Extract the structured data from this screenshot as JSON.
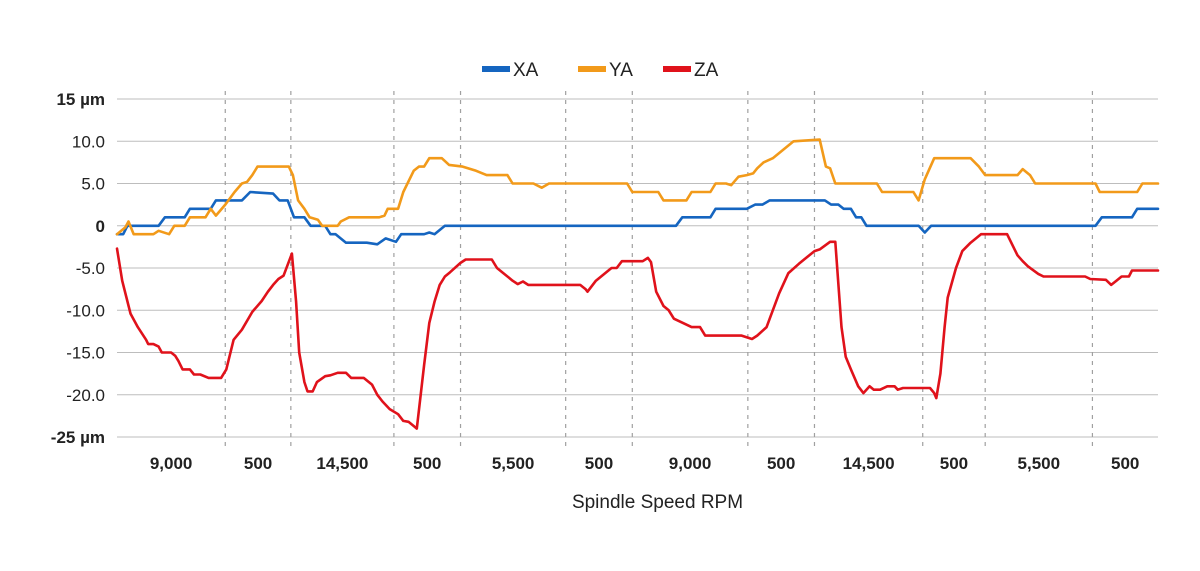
{
  "chart_data": {
    "type": "line",
    "xlabel": "Spindle Speed RPM",
    "ylabel": "",
    "ylim": [
      -25,
      15
    ],
    "x_range": [
      0,
      100
    ],
    "y_ticks": [
      {
        "value": 15,
        "label": "15 µm",
        "bold": true
      },
      {
        "value": 10,
        "label": "10.0",
        "bold": false
      },
      {
        "value": 5,
        "label": "5.0",
        "bold": false
      },
      {
        "value": 0,
        "label": "0",
        "bold": true
      },
      {
        "value": -5,
        "label": "-5.0",
        "bold": false
      },
      {
        "value": -10,
        "label": "-10.0",
        "bold": false
      },
      {
        "value": -15,
        "label": "-15.0",
        "bold": false
      },
      {
        "value": -20,
        "label": "-20.0",
        "bold": false
      },
      {
        "value": -25,
        "label": "-25 µm",
        "bold": true
      }
    ],
    "segment_boundaries": [
      0,
      10.4,
      16.7,
      26.6,
      33.0,
      43.1,
      49.5,
      60.6,
      67.0,
      77.4,
      83.4,
      93.7,
      100
    ],
    "x_tick_labels": [
      "9,000",
      "500",
      "14,500",
      "500",
      "5,500",
      "500",
      "9,000",
      "500",
      "14,500",
      "500",
      "5,500",
      "500"
    ],
    "legend_position": "top-center",
    "grid": true,
    "series": [
      {
        "name": "XA",
        "color": "#1565c0",
        "points": [
          [
            0,
            -1
          ],
          [
            0.6,
            -1
          ],
          [
            1,
            0
          ],
          [
            4,
            0
          ],
          [
            4.6,
            1
          ],
          [
            6.5,
            1
          ],
          [
            7,
            2
          ],
          [
            9,
            2
          ],
          [
            9.5,
            3
          ],
          [
            12,
            3
          ],
          [
            12.8,
            4
          ],
          [
            15,
            3.8
          ],
          [
            15.6,
            3
          ],
          [
            16.4,
            3
          ],
          [
            17,
            1
          ],
          [
            18,
            1
          ],
          [
            18.6,
            0
          ],
          [
            20,
            0
          ],
          [
            20.5,
            -1
          ],
          [
            21,
            -1
          ],
          [
            22,
            -2
          ],
          [
            24,
            -2
          ],
          [
            25,
            -2.2
          ],
          [
            25.8,
            -1.5
          ],
          [
            26.8,
            -1.9
          ],
          [
            27.3,
            -1
          ],
          [
            29.5,
            -1
          ],
          [
            30,
            -0.8
          ],
          [
            30.5,
            -1
          ],
          [
            31.5,
            0
          ],
          [
            53.7,
            0
          ],
          [
            54.3,
            1
          ],
          [
            57,
            1
          ],
          [
            57.5,
            2
          ],
          [
            60.5,
            2
          ],
          [
            61.3,
            2.5
          ],
          [
            62,
            2.5
          ],
          [
            62.7,
            3
          ],
          [
            68,
            3
          ],
          [
            68.6,
            2.5
          ],
          [
            69.3,
            2.5
          ],
          [
            69.8,
            2
          ],
          [
            70.5,
            2
          ],
          [
            71,
            1
          ],
          [
            71.5,
            1
          ],
          [
            72,
            0
          ],
          [
            77,
            0
          ],
          [
            77.6,
            -0.8
          ],
          [
            78.2,
            0
          ],
          [
            94,
            0
          ],
          [
            94.6,
            1
          ],
          [
            97.5,
            1
          ],
          [
            98,
            2
          ],
          [
            100,
            2
          ]
        ]
      },
      {
        "name": "YA",
        "color": "#f29a1a",
        "points": [
          [
            0,
            -1
          ],
          [
            0.8,
            -0.2
          ],
          [
            1.1,
            0.5
          ],
          [
            1.6,
            -1
          ],
          [
            3.5,
            -1
          ],
          [
            4,
            -0.6
          ],
          [
            5,
            -1
          ],
          [
            5.5,
            0
          ],
          [
            6.5,
            0
          ],
          [
            7,
            1
          ],
          [
            8.5,
            1
          ],
          [
            9,
            2
          ],
          [
            9.5,
            1.2
          ],
          [
            10.4,
            2.5
          ],
          [
            11.3,
            4
          ],
          [
            12,
            5
          ],
          [
            12.5,
            5.2
          ],
          [
            13,
            6
          ],
          [
            13.5,
            7
          ],
          [
            16.5,
            7
          ],
          [
            16.9,
            6
          ],
          [
            17.4,
            3
          ],
          [
            18,
            2
          ],
          [
            18.5,
            1
          ],
          [
            19.3,
            0.7
          ],
          [
            19.7,
            0
          ],
          [
            21.2,
            0
          ],
          [
            21.5,
            0.5
          ],
          [
            22.3,
            1
          ],
          [
            25.2,
            1
          ],
          [
            25.7,
            1.2
          ],
          [
            26,
            2
          ],
          [
            27,
            2
          ],
          [
            27.5,
            4
          ],
          [
            28.5,
            6.5
          ],
          [
            29,
            7
          ],
          [
            29.5,
            7
          ],
          [
            30,
            8
          ],
          [
            31.2,
            8
          ],
          [
            31.9,
            7.2
          ],
          [
            33.2,
            7
          ],
          [
            34.5,
            6.5
          ],
          [
            35.5,
            6
          ],
          [
            37.5,
            6
          ],
          [
            38,
            5
          ],
          [
            40,
            5
          ],
          [
            40.8,
            4.5
          ],
          [
            41.5,
            5
          ],
          [
            49,
            5
          ],
          [
            49.5,
            4
          ],
          [
            52,
            4
          ],
          [
            52.5,
            3
          ],
          [
            54.7,
            3
          ],
          [
            55.2,
            4
          ],
          [
            57,
            4
          ],
          [
            57.5,
            5
          ],
          [
            58.5,
            5
          ],
          [
            59,
            4.8
          ],
          [
            59.7,
            5.8
          ],
          [
            60.5,
            6
          ],
          [
            61.1,
            6.2
          ],
          [
            61.5,
            6.8
          ],
          [
            62.1,
            7.5
          ],
          [
            63,
            8
          ],
          [
            64,
            9
          ],
          [
            65,
            10
          ],
          [
            67.5,
            10.2
          ],
          [
            68.1,
            7
          ],
          [
            68.5,
            6.8
          ],
          [
            69,
            5
          ],
          [
            73,
            5
          ],
          [
            73.5,
            4
          ],
          [
            76.5,
            4
          ],
          [
            77,
            3
          ],
          [
            77.6,
            5.5
          ],
          [
            78.5,
            8
          ],
          [
            82,
            8
          ],
          [
            82.8,
            7
          ],
          [
            83.4,
            6
          ],
          [
            86.5,
            6
          ],
          [
            87,
            6.7
          ],
          [
            87.7,
            6
          ],
          [
            88.2,
            5
          ],
          [
            94,
            5
          ],
          [
            94.4,
            4
          ],
          [
            98,
            4
          ],
          [
            98.5,
            5
          ],
          [
            100,
            5
          ]
        ]
      },
      {
        "name": "ZA",
        "color": "#e0121b",
        "points": [
          [
            0,
            -2.7
          ],
          [
            0.5,
            -6.5
          ],
          [
            1.3,
            -10.4
          ],
          [
            2,
            -12
          ],
          [
            2.8,
            -13.5
          ],
          [
            3,
            -14
          ],
          [
            3.5,
            -14
          ],
          [
            4,
            -14.3
          ],
          [
            4.3,
            -15
          ],
          [
            5.2,
            -15
          ],
          [
            5.6,
            -15.4
          ],
          [
            5.9,
            -16
          ],
          [
            6.3,
            -17
          ],
          [
            7,
            -17
          ],
          [
            7.4,
            -17.6
          ],
          [
            8,
            -17.6
          ],
          [
            8.8,
            -18
          ],
          [
            10,
            -18
          ],
          [
            10.5,
            -17
          ],
          [
            11.2,
            -13.5
          ],
          [
            12,
            -12.3
          ],
          [
            13,
            -10.2
          ],
          [
            13.9,
            -8.9
          ],
          [
            14.5,
            -7.8
          ],
          [
            15,
            -7
          ],
          [
            15.5,
            -6.3
          ],
          [
            16,
            -5.9
          ],
          [
            16.8,
            -3.3
          ],
          [
            17.2,
            -9
          ],
          [
            17.5,
            -15
          ],
          [
            18,
            -18.5
          ],
          [
            18.3,
            -19.6
          ],
          [
            18.8,
            -19.6
          ],
          [
            19.2,
            -18.5
          ],
          [
            20,
            -17.8
          ],
          [
            20.5,
            -17.7
          ],
          [
            21.2,
            -17.4
          ],
          [
            22,
            -17.4
          ],
          [
            22.5,
            -18
          ],
          [
            23.7,
            -18
          ],
          [
            24.5,
            -18.8
          ],
          [
            25,
            -20
          ],
          [
            25.5,
            -20.8
          ],
          [
            26.2,
            -21.7
          ],
          [
            27,
            -22.3
          ],
          [
            27.5,
            -23.1
          ],
          [
            28,
            -23.2
          ],
          [
            28.5,
            -23.7
          ],
          [
            28.8,
            -24
          ],
          [
            29.5,
            -16.5
          ],
          [
            30,
            -11.5
          ],
          [
            30.5,
            -9
          ],
          [
            31,
            -7
          ],
          [
            31.5,
            -6
          ],
          [
            32,
            -5.5
          ],
          [
            33,
            -4.4
          ],
          [
            33.5,
            -4
          ],
          [
            36,
            -4
          ],
          [
            36.5,
            -5
          ],
          [
            37,
            -5.5
          ],
          [
            38,
            -6.5
          ],
          [
            38.5,
            -6.9
          ],
          [
            39,
            -6.6
          ],
          [
            39.5,
            -7
          ],
          [
            44.5,
            -7
          ],
          [
            45,
            -7.5
          ],
          [
            45.2,
            -7.8
          ],
          [
            46,
            -6.5
          ],
          [
            47,
            -5.5
          ],
          [
            47.5,
            -5
          ],
          [
            48,
            -5
          ],
          [
            48.5,
            -4.2
          ],
          [
            50.5,
            -4.2
          ],
          [
            51,
            -3.8
          ],
          [
            51.3,
            -4.3
          ],
          [
            51.8,
            -7.8
          ],
          [
            52.5,
            -9.5
          ],
          [
            53,
            -10
          ],
          [
            53.5,
            -11
          ],
          [
            55.2,
            -12
          ],
          [
            56,
            -12
          ],
          [
            56.5,
            -13
          ],
          [
            60,
            -13
          ],
          [
            61,
            -13.4
          ],
          [
            61.5,
            -13
          ],
          [
            62.4,
            -12
          ],
          [
            62.7,
            -11
          ],
          [
            63.6,
            -8
          ],
          [
            64.5,
            -5.6
          ],
          [
            65.5,
            -4.5
          ],
          [
            66,
            -4
          ],
          [
            67,
            -3
          ],
          [
            67.5,
            -2.8
          ],
          [
            68.5,
            -1.9
          ],
          [
            69,
            -1.9
          ],
          [
            69.6,
            -12
          ],
          [
            70,
            -15.5
          ],
          [
            70.5,
            -17
          ],
          [
            71.2,
            -19
          ],
          [
            71.7,
            -19.8
          ],
          [
            72.3,
            -19
          ],
          [
            72.7,
            -19.4
          ],
          [
            73.3,
            -19.4
          ],
          [
            74,
            -19
          ],
          [
            74.7,
            -19
          ],
          [
            75,
            -19.4
          ],
          [
            75.5,
            -19.2
          ],
          [
            78.1,
            -19.2
          ],
          [
            78.5,
            -19.8
          ],
          [
            78.7,
            -20.4
          ],
          [
            79.1,
            -17.5
          ],
          [
            79.5,
            -12
          ],
          [
            79.8,
            -8.5
          ],
          [
            80.6,
            -5
          ],
          [
            81.2,
            -3
          ],
          [
            82,
            -2
          ],
          [
            83,
            -1
          ],
          [
            85.5,
            -1
          ],
          [
            86.5,
            -3.5
          ],
          [
            87,
            -4.2
          ],
          [
            87.5,
            -4.8
          ],
          [
            88.5,
            -5.7
          ],
          [
            89,
            -6
          ],
          [
            93,
            -6
          ],
          [
            93.5,
            -6.3
          ],
          [
            95,
            -6.4
          ],
          [
            95.5,
            -7
          ],
          [
            96,
            -6.5
          ],
          [
            96.5,
            -6
          ],
          [
            97.2,
            -6
          ],
          [
            97.5,
            -5.3
          ],
          [
            100,
            -5.3
          ]
        ]
      }
    ]
  }
}
